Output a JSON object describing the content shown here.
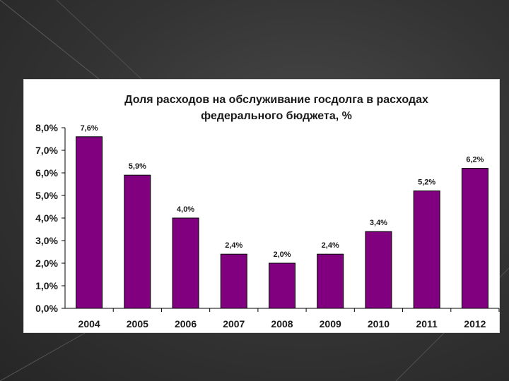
{
  "chart_data": {
    "type": "bar",
    "title_lines": [
      "Доля расходов на обслуживание госдолга в расходах",
      "федерального бюджета, %"
    ],
    "categories": [
      "2004",
      "2005",
      "2006",
      "2007",
      "2008",
      "2009",
      "2010",
      "2011",
      "2012"
    ],
    "values": [
      7.6,
      5.9,
      4.0,
      2.4,
      2.0,
      2.4,
      3.4,
      5.2,
      6.2
    ],
    "data_labels": [
      "7,6%",
      "5,9%",
      "4,0%",
      "2,4%",
      "2,0%",
      "2,4%",
      "3,4%",
      "5,2%",
      "6,2%"
    ],
    "y_ticks": [
      {
        "value": 0,
        "label": "0,0%"
      },
      {
        "value": 1,
        "label": "1,0%"
      },
      {
        "value": 2,
        "label": "2,0%"
      },
      {
        "value": 3,
        "label": "3,0%"
      },
      {
        "value": 4,
        "label": "4,0%"
      },
      {
        "value": 5,
        "label": "5,0%"
      },
      {
        "value": 6,
        "label": "6,0%"
      },
      {
        "value": 7,
        "label": "7,0%"
      },
      {
        "value": 8,
        "label": "8,0%"
      }
    ],
    "ylim": [
      0,
      8
    ],
    "grid": false,
    "legend": "none",
    "bar_color": "#800080"
  }
}
